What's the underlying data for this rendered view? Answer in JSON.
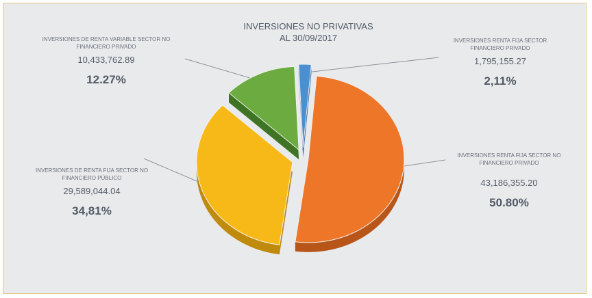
{
  "chart_data": {
    "type": "pie",
    "title_line1": "INVERSIONES NO PRIVATIVAS",
    "title_line2": "AL 30/09/2017",
    "slices": [
      {
        "name_line1": "INVERSIONES RENTA FIJA SECTOR NO",
        "name_line2": "FINANCIERO PRIVADO",
        "amount": "43,186,355.20",
        "pct_label": "50.80%",
        "value": 50.8,
        "color": "#ee7628",
        "side": "#b8561a"
      },
      {
        "name_line1": "INVERSIONES DE RENTA FIJA SECTOR NO",
        "name_line2": "FINANCIERO PÚBLICO",
        "amount": "29,589,044.04",
        "pct_label": "34,81%",
        "value": 34.81,
        "color": "#f7b918",
        "side": "#c08a0c"
      },
      {
        "name_line1": "INVERSIONES DE RENTA VARIABLE SECTOR NO",
        "name_line2": "FINANCIERO PRIVADO",
        "amount": "10,433,762.89",
        "pct_label": "12.27%",
        "value": 12.27,
        "color": "#6cab3f",
        "side": "#3f7424"
      },
      {
        "name_line1": "INVERSIONES RENTA FIJA SECTOR",
        "name_line2": "FINANCIERO PRIVADO",
        "amount": "1,795,155.27",
        "pct_label": "2,11%",
        "value": 2.11,
        "color": "#4a8fd0",
        "side": "#2d5f95"
      }
    ],
    "legend": "none"
  }
}
